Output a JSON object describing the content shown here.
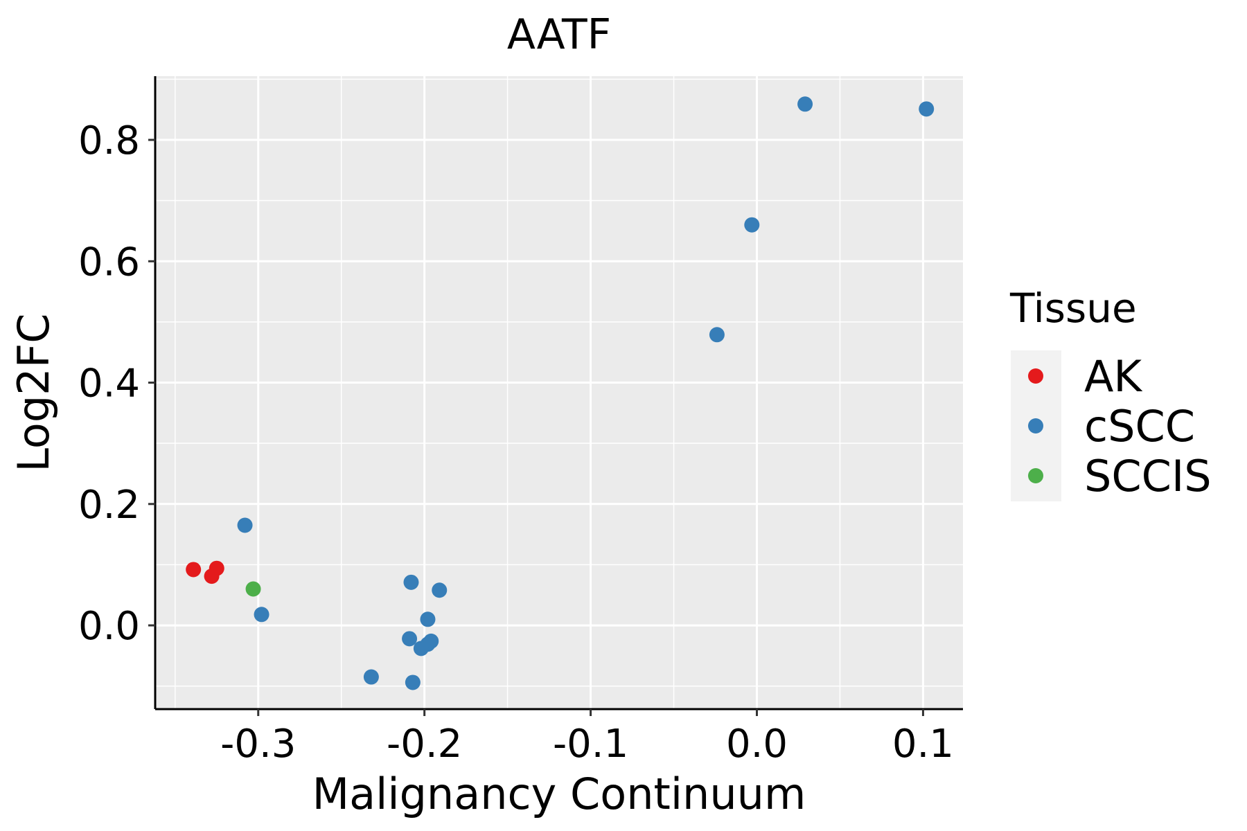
{
  "chart_data": {
    "type": "scatter",
    "title": "AATF",
    "xlabel": "Malignancy Continuum",
    "ylabel": "Log2FC",
    "xlim": [
      -0.362,
      0.124
    ],
    "ylim": [
      -0.138,
      0.905
    ],
    "x_ticks": [
      -0.3,
      -0.2,
      -0.1,
      0.0,
      0.1
    ],
    "x_tick_labels": [
      "-0.3",
      "-0.2",
      "-0.1",
      "0.0",
      "0.1"
    ],
    "y_ticks": [
      0.0,
      0.2,
      0.4,
      0.6,
      0.8
    ],
    "y_tick_labels": [
      "0.0",
      "0.2",
      "0.4",
      "0.6",
      "0.8"
    ],
    "grid": true,
    "legend": {
      "title": "Tissue",
      "position": "right",
      "entries": [
        {
          "name": "AK",
          "color": "#e41a1c"
        },
        {
          "name": "cSCC",
          "color": "#377eb8"
        },
        {
          "name": "SCCIS",
          "color": "#4daf4a"
        }
      ]
    },
    "series": [
      {
        "name": "AK",
        "color": "#e41a1c",
        "points": [
          {
            "x": -0.339,
            "y": 0.092
          },
          {
            "x": -0.325,
            "y": 0.094
          },
          {
            "x": -0.328,
            "y": 0.081
          }
        ]
      },
      {
        "name": "cSCC",
        "color": "#377eb8",
        "points": [
          {
            "x": -0.308,
            "y": 0.165
          },
          {
            "x": -0.298,
            "y": 0.018
          },
          {
            "x": -0.232,
            "y": -0.085
          },
          {
            "x": -0.207,
            "y": -0.094
          },
          {
            "x": -0.208,
            "y": 0.071
          },
          {
            "x": -0.191,
            "y": 0.058
          },
          {
            "x": -0.198,
            "y": 0.01
          },
          {
            "x": -0.209,
            "y": -0.022
          },
          {
            "x": -0.196,
            "y": -0.026
          },
          {
            "x": -0.198,
            "y": -0.031
          },
          {
            "x": -0.202,
            "y": -0.038
          },
          {
            "x": -0.024,
            "y": 0.479
          },
          {
            "x": -0.003,
            "y": 0.66
          },
          {
            "x": 0.029,
            "y": 0.859
          },
          {
            "x": 0.102,
            "y": 0.851
          }
        ]
      },
      {
        "name": "SCCIS",
        "color": "#4daf4a",
        "points": [
          {
            "x": -0.303,
            "y": 0.06
          }
        ]
      }
    ]
  }
}
